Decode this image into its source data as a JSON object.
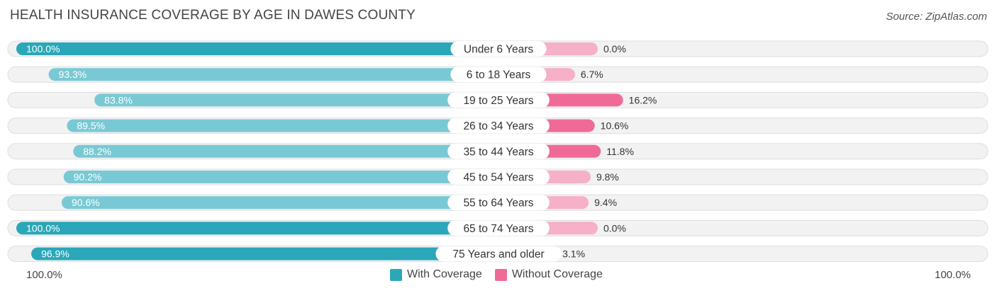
{
  "title": "HEALTH INSURANCE COVERAGE BY AGE IN DAWES COUNTY",
  "source": "Source: ZipAtlas.com",
  "colors": {
    "with_coverage": "#2aa7b8",
    "with_coverage_light": "#79c9d4",
    "without_coverage": "#f06a98",
    "without_coverage_light": "#f6b0c8",
    "row_bg": "#f2f2f2",
    "row_border": "#dedede"
  },
  "axis": {
    "left_label": "100.0%",
    "right_label": "100.0%"
  },
  "legend": [
    {
      "label": "With Coverage",
      "color": "#2aa7b8"
    },
    {
      "label": "Without Coverage",
      "color": "#f06a98"
    }
  ],
  "chart_data": {
    "type": "bar",
    "orientation": "horizontal-diverging",
    "title": "HEALTH INSURANCE COVERAGE BY AGE IN DAWES COUNTY",
    "categories": [
      "Under 6 Years",
      "6 to 18 Years",
      "19 to 25 Years",
      "26 to 34 Years",
      "35 to 44 Years",
      "45 to 54 Years",
      "55 to 64 Years",
      "65 to 74 Years",
      "75 Years and older"
    ],
    "series": [
      {
        "name": "With Coverage",
        "values": [
          100.0,
          93.3,
          83.8,
          89.5,
          88.2,
          90.2,
          90.6,
          100.0,
          96.9
        ],
        "labels": [
          "100.0%",
          "93.3%",
          "83.8%",
          "89.5%",
          "88.2%",
          "90.2%",
          "90.6%",
          "100.0%",
          "96.9%"
        ]
      },
      {
        "name": "Without Coverage",
        "values": [
          0.0,
          6.7,
          16.2,
          10.6,
          11.8,
          9.8,
          9.4,
          0.0,
          3.1
        ],
        "labels": [
          "0.0%",
          "6.7%",
          "16.2%",
          "10.6%",
          "11.8%",
          "9.8%",
          "9.4%",
          "0.0%",
          "3.1%"
        ]
      }
    ],
    "xlim": [
      0,
      100
    ],
    "legend_position": "bottom-center"
  }
}
